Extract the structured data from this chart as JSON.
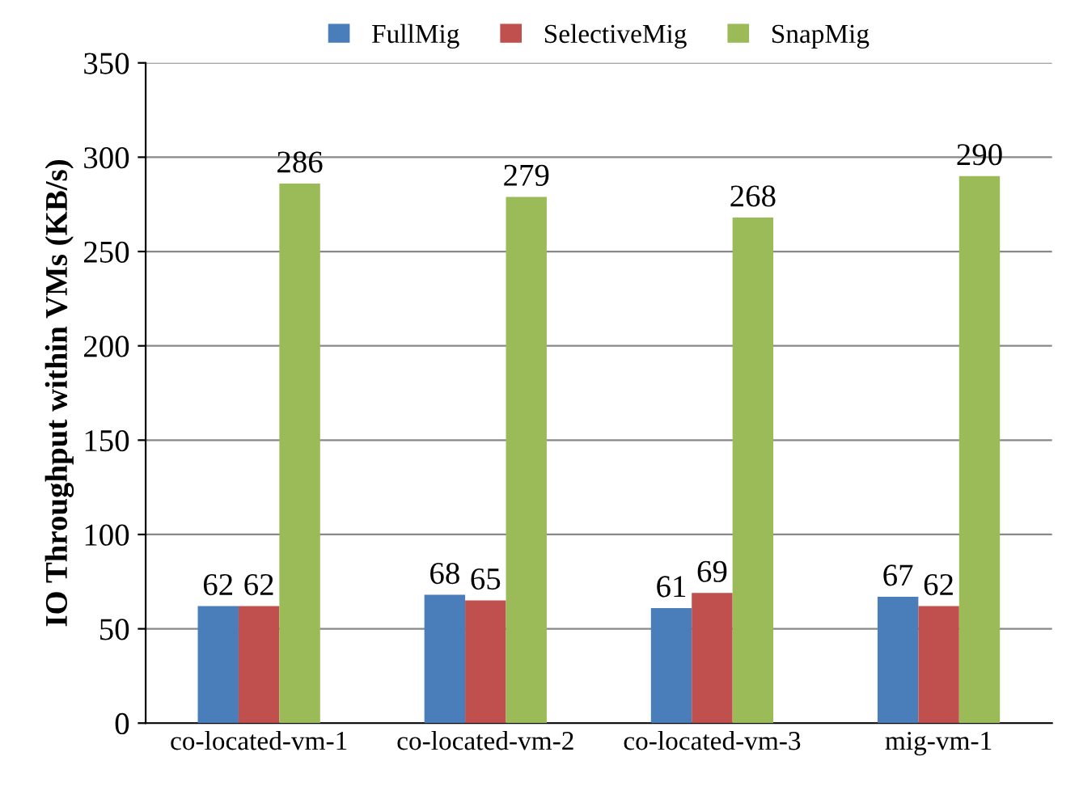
{
  "chart_data": {
    "type": "bar",
    "ylabel": "IO Throughput within VMs (KB/s)",
    "categories": [
      "co-located-vm-1",
      "co-located-vm-2",
      "co-located-vm-3",
      "mig-vm-1"
    ],
    "series": [
      {
        "name": "FullMig",
        "color": "#4a7ebb",
        "values": [
          62,
          68,
          61,
          67
        ]
      },
      {
        "name": "SelectiveMig",
        "color": "#c0504d",
        "values": [
          62,
          65,
          69,
          62
        ]
      },
      {
        "name": "SnapMig",
        "color": "#9bbb59",
        "values": [
          286,
          279,
          268,
          290
        ]
      }
    ],
    "ylim": [
      0,
      350
    ],
    "yticks": [
      0,
      50,
      100,
      150,
      200,
      250,
      300,
      350
    ],
    "grid": "y",
    "legend": "top",
    "data_labels": true
  }
}
